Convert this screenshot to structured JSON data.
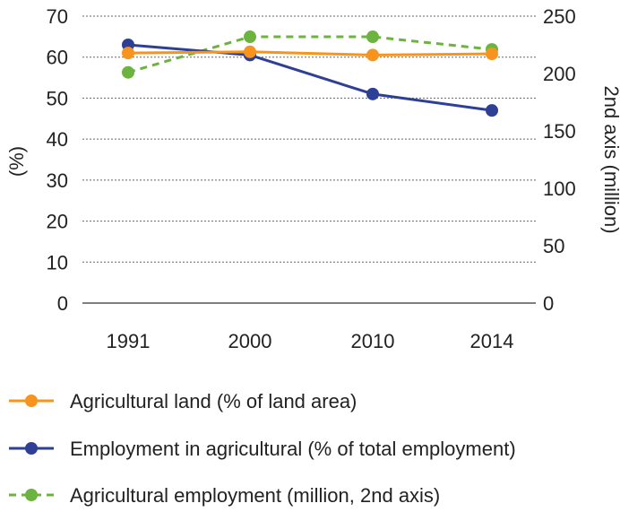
{
  "chart_data": {
    "type": "line",
    "categories": [
      "1991",
      "2000",
      "2010",
      "2014"
    ],
    "y_left": {
      "label": "(%)",
      "ticks": [
        "0",
        "10",
        "20",
        "30",
        "40",
        "50",
        "60",
        "70"
      ],
      "range": [
        0,
        70
      ]
    },
    "y_right": {
      "label": "2nd axis (million)",
      "ticks": [
        "0",
        "50",
        "100",
        "150",
        "200",
        "250"
      ],
      "range": [
        0,
        250
      ]
    },
    "grid": "horizontal-dotted",
    "legend_position": "bottom",
    "series": [
      {
        "name": "Agricultural land (% of land area)",
        "axis": "left",
        "color": "#f7941d",
        "dash": "solid",
        "values": [
          61,
          61.3,
          60.5,
          60.8
        ]
      },
      {
        "name": "Employment in agricultural (% of total employment)",
        "axis": "left",
        "color": "#2e3f96",
        "dash": "solid",
        "values": [
          63,
          60.5,
          51,
          47
        ]
      },
      {
        "name": "Agricultural employment (million, 2nd axis)",
        "axis": "right",
        "color": "#6db33f",
        "dash": "dashed",
        "values": [
          201,
          232,
          232,
          221
        ]
      }
    ]
  }
}
